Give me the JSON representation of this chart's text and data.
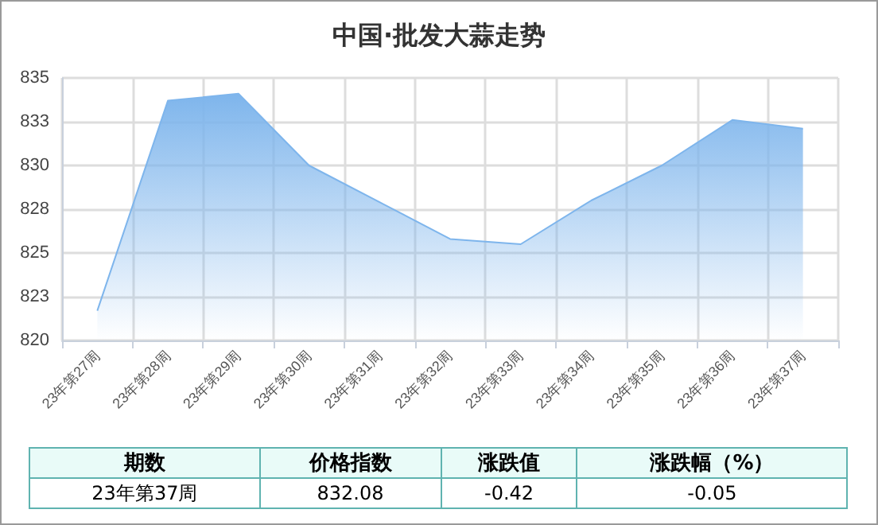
{
  "chart_data": {
    "type": "area",
    "title": "中国·批发大蒜走势",
    "categories": [
      "23年第27周",
      "23年第28周",
      "23年第29周",
      "23年第30周",
      "23年第31周",
      "23年第32周",
      "23年第33周",
      "23年第34周",
      "23年第35周",
      "23年第36周",
      "23年第37周"
    ],
    "series": [
      {
        "color": "#7eb5ec",
        "values": [
          821.7,
          833.7,
          834.1,
          830.0,
          827.9,
          825.8,
          825.5,
          828.0,
          830.0,
          832.6,
          832.1
        ]
      }
    ],
    "ylim": [
      820,
      835
    ],
    "yticks": [
      820,
      {
        "value": 822.5,
        "label": "823"
      },
      825,
      {
        "value": 827.5,
        "label": "828"
      },
      830,
      {
        "value": 832.5,
        "label": "833"
      },
      835
    ],
    "grid": true,
    "marker": "none",
    "annotations": [
      "期数",
      "价格指数",
      "涨跌值",
      "涨跌幅（%）",
      "23年第37周",
      "832.08",
      "-0.42",
      "-0.05"
    ]
  }
}
